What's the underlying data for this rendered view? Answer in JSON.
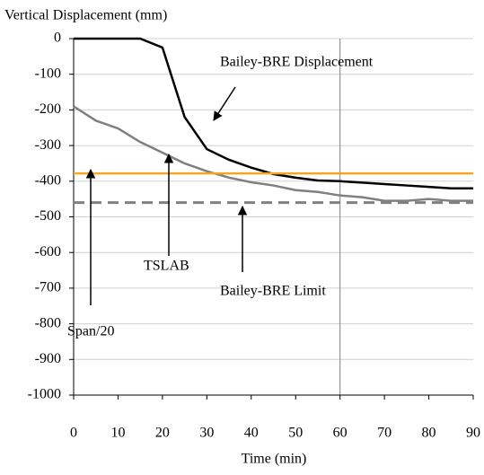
{
  "chart_data": {
    "type": "line",
    "ylabel": "Vertical Displacement (mm)",
    "xlabel": "Time (min)",
    "xlim": [
      0,
      90
    ],
    "xticks": [
      0,
      10,
      20,
      30,
      40,
      50,
      60,
      70,
      80,
      90
    ],
    "ylim": [
      -1000,
      0
    ],
    "yticks": [
      0,
      -100,
      -200,
      -300,
      -400,
      -500,
      -600,
      -700,
      -800,
      -900,
      -1000
    ],
    "grid": true,
    "vlines": [
      60
    ],
    "series": [
      {
        "name": "Bailey-BRE Displacement",
        "color": "#000000",
        "dash": false,
        "x": [
          0,
          5,
          10,
          15,
          20,
          25,
          30,
          35,
          40,
          45,
          50,
          55,
          60,
          65,
          70,
          75,
          80,
          85,
          90
        ],
        "values": [
          0,
          0,
          0,
          0,
          -25,
          -220,
          -310,
          -340,
          -362,
          -380,
          -390,
          -398,
          -400,
          -404,
          -408,
          -412,
          -416,
          -420,
          -420
        ]
      },
      {
        "name": "TSLAB",
        "color": "#808080",
        "dash": false,
        "x": [
          0,
          5,
          10,
          15,
          20,
          25,
          30,
          35,
          40,
          45,
          50,
          55,
          60,
          65,
          70,
          75,
          80,
          85,
          90
        ],
        "values": [
          -190,
          -230,
          -252,
          -290,
          -320,
          -350,
          -372,
          -390,
          -403,
          -412,
          -425,
          -430,
          -440,
          -445,
          -455,
          -455,
          -450,
          -455,
          -455
        ]
      },
      {
        "name": "Span/20",
        "color": "#f5a623",
        "dash": false,
        "x": [
          0,
          90
        ],
        "values": [
          -378,
          -378
        ]
      },
      {
        "name": "Bailey-BRE Limit",
        "color": "#808080",
        "dash": true,
        "x": [
          0,
          90
        ],
        "values": [
          -460,
          -460
        ]
      }
    ]
  }
}
